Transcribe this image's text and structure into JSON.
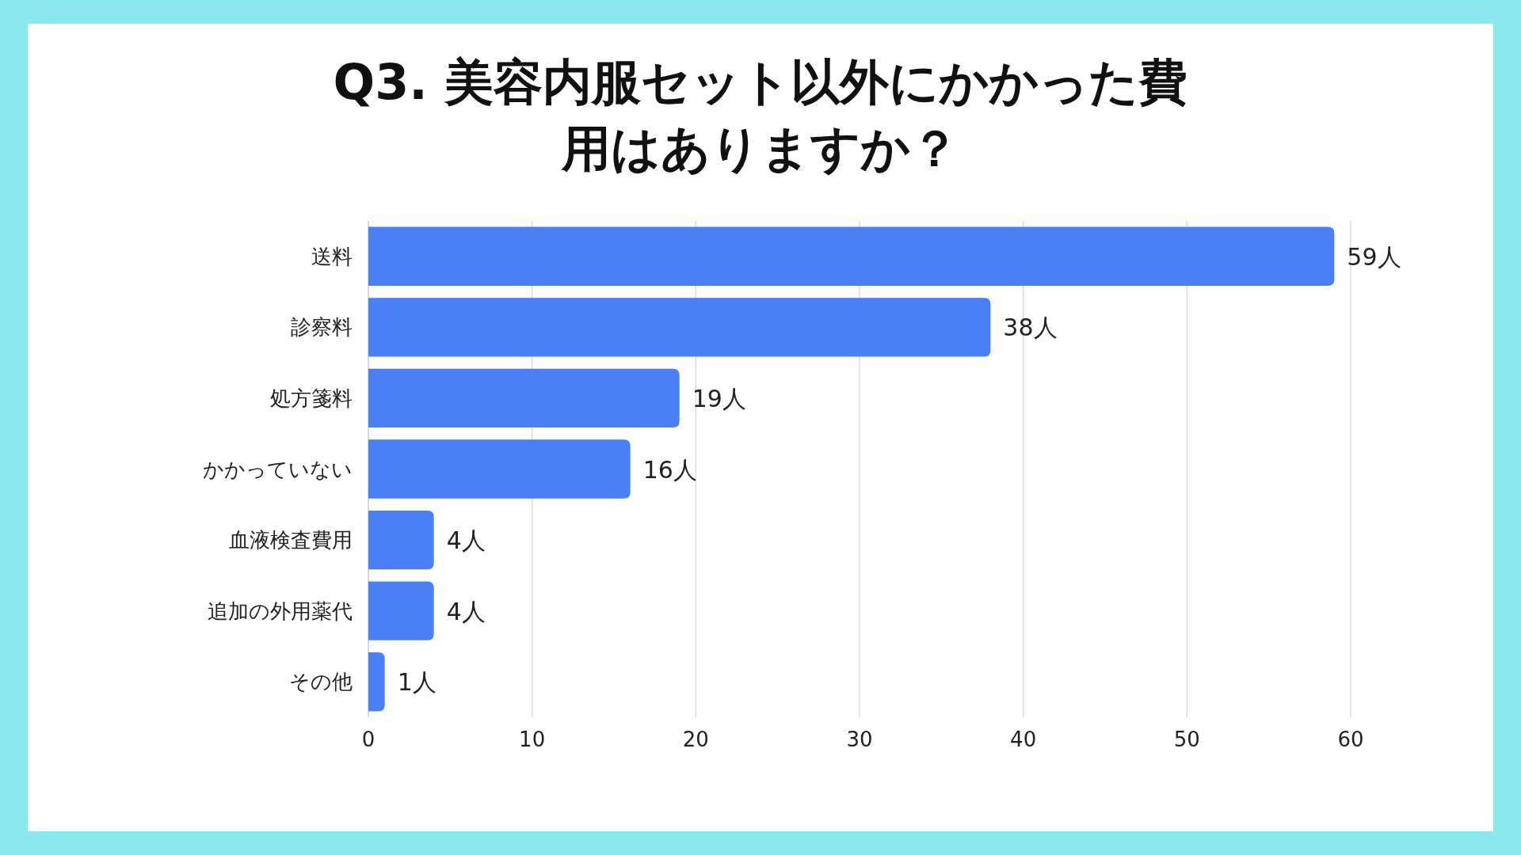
{
  "chart_data": {
    "type": "bar",
    "orientation": "horizontal",
    "title": "Q3. 美容内服セット以外にかかった費用はありますか？",
    "categories": [
      "送料",
      "診察料",
      "処方箋料",
      "かかっていない",
      "血液検査費用",
      "追加の外用薬代",
      "その他"
    ],
    "values": [
      59,
      38,
      19,
      16,
      4,
      4,
      1
    ],
    "value_labels": [
      "59人",
      "38人",
      "19人",
      "16人",
      "4人",
      "4人",
      "1人"
    ],
    "color": "#4a7ff5",
    "xlim": [
      0,
      60
    ],
    "xticks": [
      0,
      10,
      20,
      30,
      40,
      50,
      60
    ],
    "grid": "x"
  }
}
